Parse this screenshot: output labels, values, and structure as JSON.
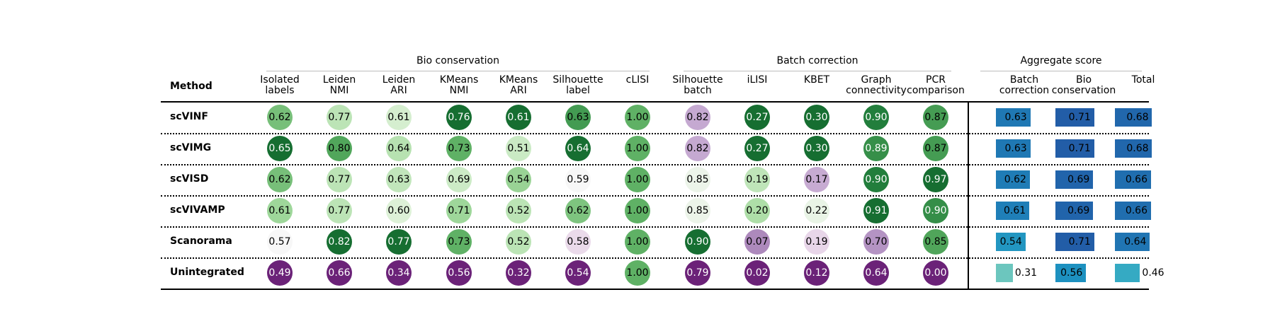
{
  "chart_data": {
    "type": "table",
    "method_header": "Method",
    "groups": [
      {
        "label": "Bio conservation"
      },
      {
        "label": "Batch correction"
      },
      {
        "label": "Aggregate score"
      }
    ],
    "columns": [
      {
        "label": "Isolated\nlabels",
        "group": 0
      },
      {
        "label": "Leiden\nNMI",
        "group": 0
      },
      {
        "label": "Leiden\nARI",
        "group": 0
      },
      {
        "label": "KMeans\nNMI",
        "group": 0
      },
      {
        "label": "KMeans\nARI",
        "group": 0
      },
      {
        "label": "Silhouette\nlabel",
        "group": 0
      },
      {
        "label": "cLISI",
        "group": 0
      },
      {
        "label": "Silhouette\nbatch",
        "group": 1
      },
      {
        "label": "iLISI",
        "group": 1
      },
      {
        "label": "KBET",
        "group": 1
      },
      {
        "label": "Graph\nconnectivity",
        "group": 1
      },
      {
        "label": "PCR\ncomparison",
        "group": 1
      },
      {
        "label": "Batch\ncorrection",
        "group": 2
      },
      {
        "label": "Bio\nconservation",
        "group": 2
      },
      {
        "label": "Total",
        "group": 2
      }
    ],
    "rows": [
      {
        "method": "scVINF",
        "values": [
          "0.62",
          "0.77",
          "0.61",
          "0.76",
          "0.61",
          "0.63",
          "1.00",
          "0.82",
          "0.27",
          "0.30",
          "0.90",
          "0.87",
          "0.63",
          "0.71",
          "0.68"
        ]
      },
      {
        "method": "scVIMG",
        "values": [
          "0.65",
          "0.80",
          "0.64",
          "0.73",
          "0.51",
          "0.64",
          "1.00",
          "0.82",
          "0.27",
          "0.30",
          "0.89",
          "0.87",
          "0.63",
          "0.71",
          "0.68"
        ]
      },
      {
        "method": "scVISD",
        "values": [
          "0.62",
          "0.77",
          "0.63",
          "0.69",
          "0.54",
          "0.59",
          "1.00",
          "0.85",
          "0.19",
          "0.17",
          "0.90",
          "0.97",
          "0.62",
          "0.69",
          "0.66"
        ]
      },
      {
        "method": "scVIVAMP",
        "values": [
          "0.61",
          "0.77",
          "0.60",
          "0.71",
          "0.52",
          "0.62",
          "1.00",
          "0.85",
          "0.20",
          "0.22",
          "0.91",
          "0.90",
          "0.61",
          "0.69",
          "0.66"
        ]
      },
      {
        "method": "Scanorama",
        "values": [
          "0.57",
          "0.82",
          "0.77",
          "0.73",
          "0.52",
          "0.58",
          "1.00",
          "0.90",
          "0.07",
          "0.19",
          "0.70",
          "0.85",
          "0.54",
          "0.71",
          "0.64"
        ]
      },
      {
        "method": "Unintegrated",
        "values": [
          "0.49",
          "0.66",
          "0.34",
          "0.56",
          "0.32",
          "0.54",
          "1.00",
          "0.79",
          "0.02",
          "0.12",
          "0.64",
          "0.00",
          "0.31",
          "0.56",
          "0.46"
        ]
      }
    ],
    "colormaps": {
      "metrics": "PRGn (purple = low, green = high, per column)",
      "aggregate": "YlGnBu (light = low, dark blue = high)"
    }
  }
}
